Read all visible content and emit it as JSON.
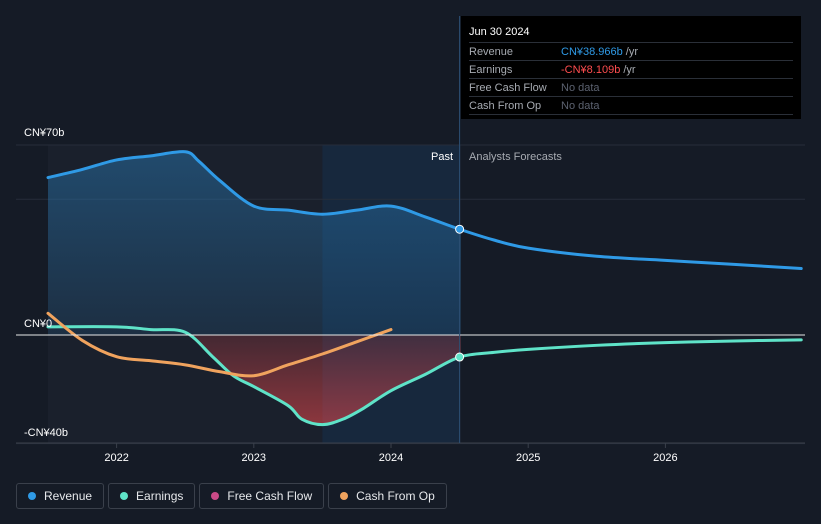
{
  "colors": {
    "revenue": "#2f9ae6",
    "earnings": "#5fe3c8",
    "free_cash_flow": "#c94a87",
    "cash_from_op": "#f0a35e",
    "negative": "#ff4d4f"
  },
  "tooltip": {
    "date": "Jun 30 2024",
    "rows": [
      {
        "label": "Revenue",
        "value": "CN¥38.966b",
        "unit": "/yr",
        "color": "#2f9ae6"
      },
      {
        "label": "Earnings",
        "value": "-CN¥8.109b",
        "unit": "/yr",
        "color": "#ff4d4f"
      },
      {
        "label": "Free Cash Flow",
        "value": "No data",
        "unit": "",
        "color": "#5c6270"
      },
      {
        "label": "Cash From Op",
        "value": "No data",
        "unit": "",
        "color": "#5c6270"
      }
    ]
  },
  "legend": [
    {
      "label": "Revenue",
      "color": "#2f9ae6"
    },
    {
      "label": "Earnings",
      "color": "#5fe3c8"
    },
    {
      "label": "Free Cash Flow",
      "color": "#c94a87"
    },
    {
      "label": "Cash From Op",
      "color": "#f0a35e"
    }
  ],
  "chart_data": {
    "type": "line",
    "y_tick_labels": [
      "CN¥70b",
      "CN¥0",
      "-CN¥40b"
    ],
    "x_tick_labels": [
      "2022",
      "2023",
      "2024",
      "2025",
      "2026"
    ],
    "section_labels": {
      "past": "Past",
      "forecast": "Analysts Forecasts"
    },
    "ylim": [
      -40,
      70
    ],
    "xlim": [
      2021.45,
      2026.99
    ],
    "divider_x": 2024.5,
    "forecast_shade_start_x": 2023.5,
    "series": [
      {
        "name": "Revenue",
        "key": "revenue",
        "x": [
          2021.5,
          2021.75,
          2022.0,
          2022.25,
          2022.5,
          2022.6,
          2022.75,
          2023.0,
          2023.25,
          2023.5,
          2023.75,
          2024.0,
          2024.25,
          2024.5,
          2024.75,
          2025.0,
          2025.5,
          2026.0,
          2026.5,
          2026.99
        ],
        "y": [
          58,
          61,
          64.5,
          66,
          67.5,
          64,
          57,
          47.5,
          46,
          44.5,
          46,
          47.5,
          43.5,
          38.966,
          35,
          32,
          29,
          27.5,
          26,
          24.5
        ]
      },
      {
        "name": "Earnings",
        "key": "earnings",
        "x": [
          2021.5,
          2022.0,
          2022.25,
          2022.5,
          2022.7,
          2022.85,
          2023.0,
          2023.25,
          2023.35,
          2023.5,
          2023.65,
          2023.8,
          2024.0,
          2024.25,
          2024.5,
          2024.75,
          2025.0,
          2025.5,
          2026.0,
          2026.5,
          2026.99
        ],
        "y": [
          3,
          3,
          2,
          1,
          -8,
          -15,
          -19,
          -26,
          -31,
          -33,
          -31,
          -27,
          -20.5,
          -14.5,
          -8.109,
          -6.4,
          -5.3,
          -3.8,
          -2.8,
          -2.2,
          -1.8
        ]
      },
      {
        "name": "Cash From Op",
        "key": "cash_from_op",
        "x": [
          2021.5,
          2021.75,
          2022.0,
          2022.25,
          2022.5,
          2022.75,
          2023.0,
          2023.25,
          2023.5,
          2023.75,
          2024.0
        ],
        "y": [
          8,
          -2,
          -8,
          -9.5,
          -11,
          -13.5,
          -15,
          -11,
          -7,
          -2.5,
          2
        ]
      }
    ]
  }
}
